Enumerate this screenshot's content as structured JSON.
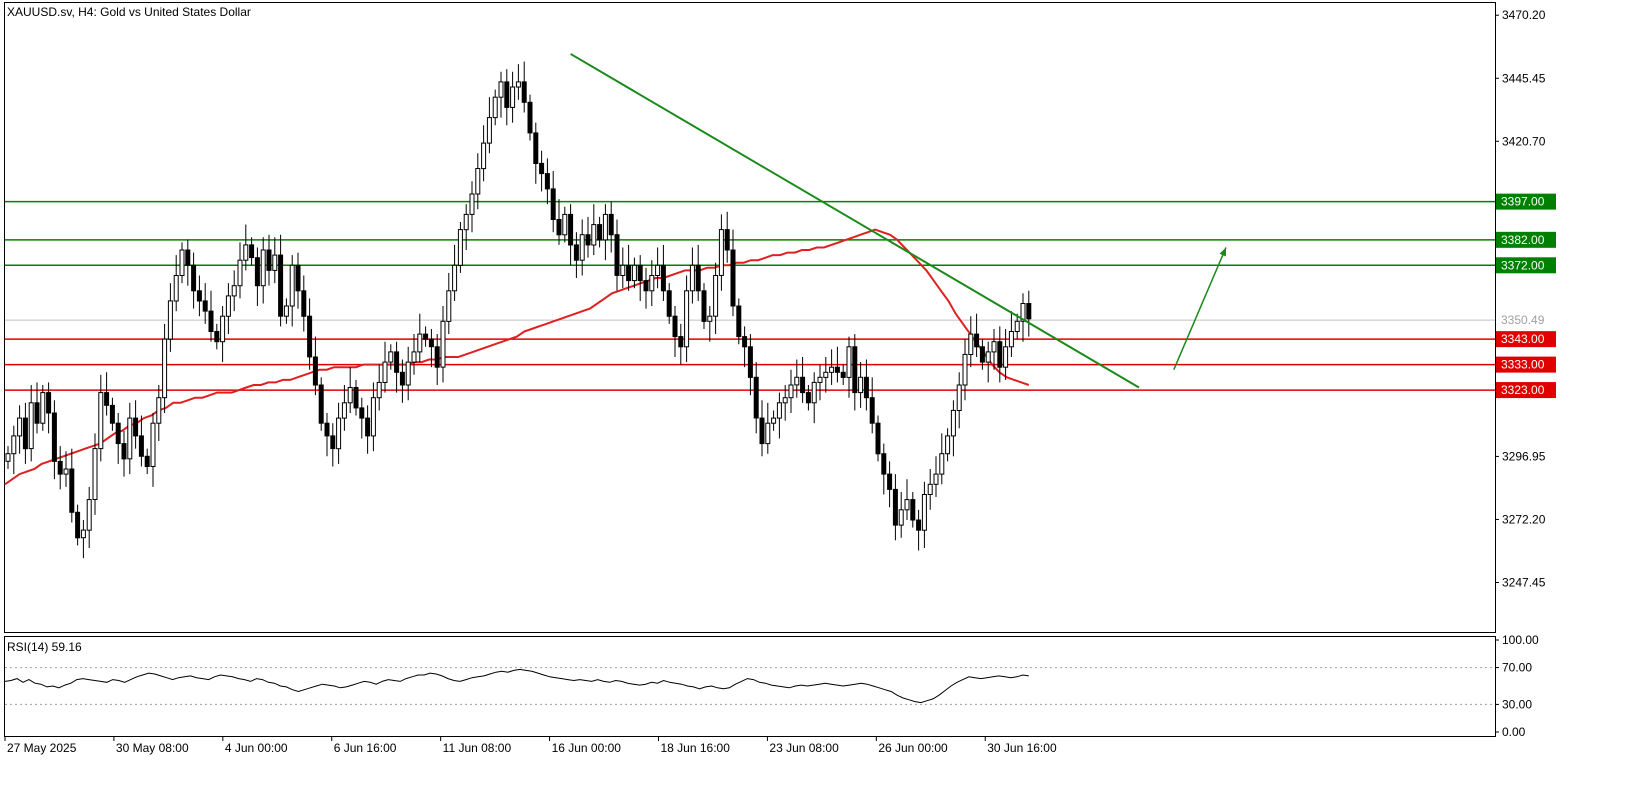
{
  "header": {
    "symbol": "XAUUSD.sv",
    "timeframe": "H4",
    "description": "Gold vs United States Dollar"
  },
  "colors": {
    "background": "#ffffff",
    "grid_border": "#000000",
    "support": "#e00000",
    "resistance": "#008000",
    "moving_average": "#e02020",
    "trendline": "#1a8a1a",
    "arrow": "#1a8a1a",
    "bull_candle": "#ffffff",
    "bear_candle": "#000000",
    "current_price_line": "#c0c0c0"
  },
  "chart_data": {
    "type": "candlestick",
    "title": "XAUUSD.sv, H4:  Gold vs United States Dollar",
    "ylim": [
      3228,
      3475
    ],
    "y_ticks": [
      "3470.20",
      "3445.45",
      "3420.70",
      "3296.95",
      "3272.20",
      "3247.45"
    ],
    "x_ticks": [
      "27 May 2025",
      "30 May 08:00",
      "4 Jun 00:00",
      "6 Jun 16:00",
      "11 Jun 08:00",
      "16 Jun 00:00",
      "18 Jun 16:00",
      "23 Jun 08:00",
      "26 Jun 00:00",
      "30 Jun 16:00"
    ],
    "current_price": 3350.49,
    "current_price_label": "3350.49",
    "resistance_levels": [
      {
        "value": 3397.0,
        "label": "3397.00"
      },
      {
        "value": 3382.0,
        "label": "3382.00"
      },
      {
        "value": 3372.0,
        "label": "3372.00"
      }
    ],
    "support_levels": [
      {
        "value": 3343.0,
        "label": "3343.00"
      },
      {
        "value": 3333.0,
        "label": "3333.00"
      },
      {
        "value": 3323.0,
        "label": "3323.00"
      }
    ],
    "candles_close": [
      3298,
      3305,
      3312,
      3300,
      3318,
      3310,
      3322,
      3314,
      3295,
      3290,
      3292,
      3275,
      3265,
      3268,
      3280,
      3300,
      3322,
      3317,
      3310,
      3302,
      3296,
      3312,
      3305,
      3297,
      3293,
      3310,
      3320,
      3343,
      3358,
      3368,
      3378,
      3372,
      3362,
      3358,
      3354,
      3346,
      3342,
      3352,
      3360,
      3364,
      3374,
      3380,
      3375,
      3364,
      3378,
      3370,
      3376,
      3352,
      3356,
      3372,
      3362,
      3352,
      3336,
      3325,
      3310,
      3305,
      3300,
      3312,
      3318,
      3324,
      3316,
      3312,
      3305,
      3320,
      3326,
      3334,
      3338,
      3330,
      3325,
      3334,
      3338,
      3345,
      3343,
      3340,
      3332,
      3350,
      3362,
      3372,
      3386,
      3392,
      3400,
      3410,
      3420,
      3430,
      3438,
      3444,
      3434,
      3442,
      3444,
      3436,
      3424,
      3412,
      3408,
      3402,
      3390,
      3384,
      3392,
      3380,
      3374,
      3384,
      3380,
      3388,
      3382,
      3392,
      3384,
      3368,
      3372,
      3366,
      3372,
      3366,
      3362,
      3368,
      3372,
      3362,
      3352,
      3344,
      3340,
      3362,
      3372,
      3362,
      3350,
      3352,
      3368,
      3386,
      3378,
      3356,
      3344,
      3340,
      3328,
      3312,
      3302,
      3310,
      3312,
      3318,
      3320,
      3325,
      3328,
      3322,
      3318,
      3326,
      3328,
      3330,
      3332,
      3330,
      3328,
      3340,
      3322,
      3328,
      3320,
      3310,
      3298,
      3290,
      3284,
      3270,
      3276,
      3280,
      3272,
      3268,
      3282,
      3286,
      3290,
      3298,
      3305,
      3315,
      3325,
      3337,
      3345,
      3340,
      3334,
      3338,
      3342,
      3332,
      3340,
      3346,
      3350,
      3357,
      3351
    ],
    "moving_average": [
      3286,
      3288,
      3290,
      3291,
      3292,
      3294,
      3295,
      3296,
      3297,
      3298,
      3299,
      3300,
      3301,
      3302,
      3304,
      3306,
      3307,
      3309,
      3310,
      3312,
      3313,
      3315,
      3316,
      3318,
      3318,
      3319,
      3320,
      3320,
      3321,
      3322,
      3322,
      3322,
      3323,
      3324,
      3325,
      3325,
      3326,
      3326,
      3327,
      3327,
      3328,
      3329,
      3330,
      3331,
      3331,
      3332,
      3332,
      3332,
      3332,
      3333,
      3333,
      3333,
      3333,
      3333,
      3333,
      3333,
      3334,
      3334,
      3335,
      3335,
      3336,
      3336,
      3336,
      3337,
      3338,
      3339,
      3340,
      3341,
      3342,
      3343,
      3344,
      3346,
      3347,
      3348,
      3349,
      3350,
      3351,
      3352,
      3353,
      3354,
      3355,
      3357,
      3359,
      3361,
      3362,
      3363,
      3364,
      3365,
      3366,
      3367,
      3367,
      3368,
      3369,
      3370,
      3370,
      3370,
      3371,
      3371,
      3372,
      3372,
      3373,
      3373,
      3374,
      3374,
      3375,
      3376,
      3376,
      3377,
      3377,
      3378,
      3378,
      3379,
      3379,
      3380,
      3381,
      3382,
      3383,
      3384,
      3385,
      3386,
      3385,
      3384,
      3382,
      3379,
      3376,
      3373,
      3370,
      3366,
      3362,
      3358,
      3353,
      3349,
      3345,
      3341,
      3337,
      3333,
      3330,
      3328,
      3327,
      3326,
      3325
    ],
    "rsi": {
      "label": "RSI(14) 59.16",
      "period": 14,
      "value": 59.16,
      "levels": [
        70,
        30
      ],
      "ylim": [
        0,
        100
      ],
      "y_ticks": [
        "100.00",
        "70.00",
        "30.00",
        "0.00"
      ],
      "values": [
        55,
        56,
        58,
        54,
        57,
        53,
        52,
        49,
        50,
        48,
        51,
        53,
        57,
        58,
        57,
        56,
        55,
        54,
        57,
        56,
        54,
        57,
        60,
        62,
        64,
        63,
        61,
        59,
        57,
        59,
        60,
        61,
        59,
        58,
        57,
        60,
        62,
        61,
        60,
        58,
        57,
        55,
        58,
        57,
        54,
        53,
        50,
        49,
        46,
        44,
        46,
        48,
        50,
        52,
        51,
        50,
        48,
        49,
        51,
        53,
        55,
        54,
        52,
        55,
        57,
        56,
        55,
        58,
        60,
        62,
        62,
        64,
        63,
        61,
        58,
        56,
        55,
        57,
        59,
        60,
        61,
        63,
        65,
        66,
        65,
        67,
        68,
        67,
        66,
        64,
        62,
        60,
        59,
        58,
        57,
        56,
        57,
        56,
        55,
        57,
        55,
        54,
        56,
        55,
        53,
        52,
        51,
        52,
        54,
        53,
        56,
        54,
        53,
        52,
        50,
        49,
        47,
        49,
        50,
        48,
        47,
        48,
        52,
        55,
        58,
        57,
        54,
        53,
        51,
        50,
        49,
        48,
        50,
        51,
        50,
        51,
        52,
        53,
        52,
        51,
        50,
        51,
        52,
        53,
        52,
        50,
        48,
        46,
        44,
        40,
        37,
        35,
        33,
        32,
        34,
        36,
        40,
        45,
        50,
        54,
        57,
        60,
        59,
        58,
        59,
        60,
        61,
        60,
        59,
        60,
        62,
        61
      ],
      "color": "#000000"
    },
    "trendline": {
      "from": {
        "index": 97,
        "value": 3455
      },
      "to": {
        "index": 195,
        "value": 3324
      }
    },
    "projection_arrow": {
      "from": {
        "index": 201,
        "value": 3331
      },
      "to": {
        "index": 210,
        "value": 3379
      }
    }
  }
}
